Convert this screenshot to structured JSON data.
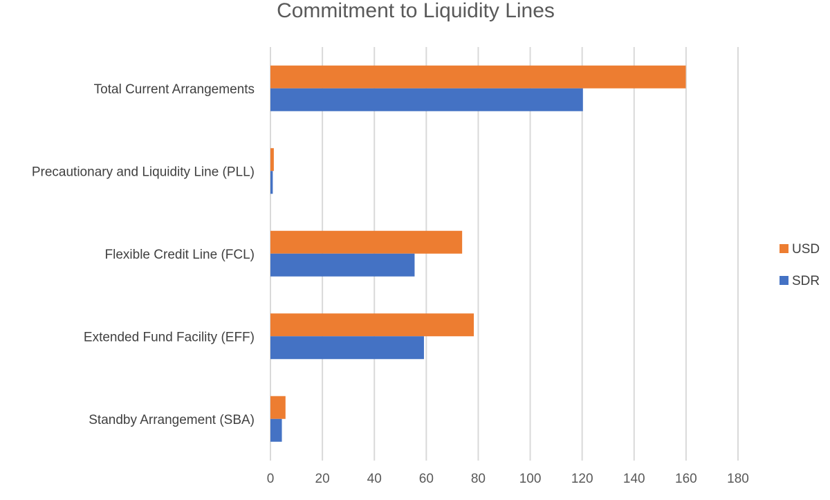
{
  "chart_data": {
    "type": "bar",
    "orientation": "horizontal",
    "title": "Commitment to Liquidity Lines",
    "categories": [
      "Total Current Arrangements",
      "Precautionary and Liquidity Line (PLL)",
      "Flexible Credit Line (FCL)",
      "Extended Fund Facility (EFF)",
      "Standby Arrangement (SBA)"
    ],
    "series": [
      {
        "name": "USD",
        "color": "#ED7D31",
        "values": [
          159.9,
          1.3,
          73.8,
          78.3,
          5.8
        ]
      },
      {
        "name": "SDR",
        "color": "#4472C4",
        "values": [
          120.3,
          0.9,
          55.5,
          59.1,
          4.4
        ]
      }
    ],
    "x_ticks": [
      0,
      20,
      40,
      60,
      80,
      100,
      120,
      140,
      160,
      180
    ],
    "xlim": [
      0,
      180
    ],
    "grid": "vertical",
    "legend": "right"
  }
}
